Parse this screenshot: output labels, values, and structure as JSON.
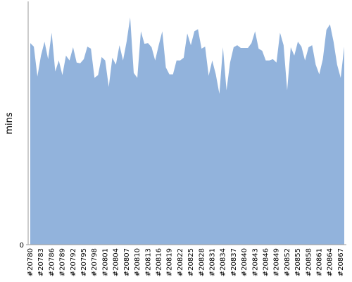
{
  "chart_data": {
    "type": "area",
    "y_label": "mins",
    "color": "#92b3dc",
    "categories": [
      "#20780",
      null,
      null,
      "#20783",
      null,
      null,
      "#20786",
      null,
      null,
      "#20789",
      null,
      null,
      "#20792",
      null,
      null,
      "#20795",
      null,
      null,
      "#20798",
      null,
      null,
      "#20801",
      null,
      null,
      "#20804",
      null,
      null,
      "#20807",
      null,
      null,
      "#20810",
      null,
      null,
      "#20813",
      null,
      null,
      "#20816",
      null,
      null,
      "#20819",
      null,
      null,
      "#20822",
      null,
      null,
      "#20825",
      null,
      null,
      "#20828",
      null,
      null,
      "#20831",
      null,
      null,
      "#20834",
      null,
      null,
      "#20837",
      null,
      null,
      "#20840",
      null,
      null,
      "#20843",
      null,
      null,
      "#20846",
      null,
      null,
      "#20849",
      null,
      null,
      "#20852",
      null,
      null,
      "#20855",
      null,
      null,
      "#20858",
      null,
      null,
      "#20861",
      null,
      null,
      "#20864",
      null,
      null,
      "#20867",
      null
    ],
    "values": [
      290,
      285,
      242,
      272,
      292,
      267,
      305,
      249,
      265,
      244,
      272,
      265,
      284,
      262,
      261,
      267,
      285,
      282,
      240,
      244,
      270,
      265,
      227,
      269,
      259,
      287,
      265,
      292,
      327,
      247,
      240,
      307,
      289,
      290,
      284,
      265,
      287,
      307,
      255,
      245,
      245,
      265,
      265,
      269,
      304,
      287,
      307,
      310,
      282,
      285,
      243,
      265,
      245,
      217,
      284,
      222,
      262,
      284,
      287,
      283,
      283,
      283,
      290,
      307,
      282,
      279,
      265,
      265,
      267,
      262,
      305,
      287,
      222,
      284,
      272,
      292,
      285,
      265,
      284,
      287,
      259,
      245,
      267,
      309,
      317,
      292,
      259,
      240,
      285
    ],
    "ylim": [
      0,
      350
    ],
    "yticks": [
      0
    ]
  }
}
